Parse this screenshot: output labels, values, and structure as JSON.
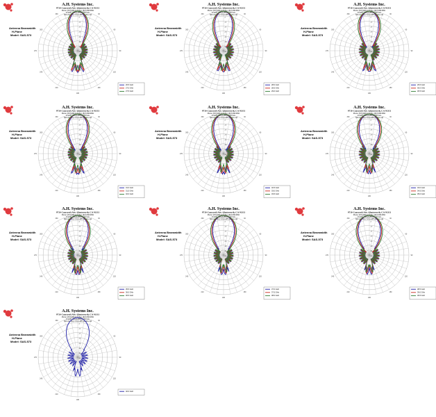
{
  "header": {
    "company": "A.H. Systems Inc.",
    "address": "9710 Cozycroft Ave. Chatsworth, CA 91311",
    "phone": "Phone: (818) 998-0223  Fax: (818) 998-6892",
    "email": "E-mail: sales@AHSystems.com",
    "web": "Web site: http://www.AHSystems.com"
  },
  "side_label": [
    "Antenna Beamwidth",
    "H-Plane",
    "Model: SAS-573"
  ],
  "colors": {
    "brand": "#e03a3e",
    "grid": "#9a9a9a",
    "series": [
      "#1f1fa8",
      "#c8281e",
      "#2e7d32"
    ]
  },
  "chart_data": [
    {
      "type": "polar",
      "angle_labels": [
        "0",
        "30",
        "60",
        "90",
        "120",
        "150",
        "180",
        "210",
        "240",
        "270",
        "300",
        "330"
      ],
      "r_ticks": [
        "0",
        "-5",
        "-10",
        "-15",
        "-20",
        "-25",
        "-30",
        "-35",
        "-40"
      ],
      "rlim": [
        -40,
        0
      ],
      "series": [
        {
          "name": "26.5 GHz"
        },
        {
          "name": "27.0 GHz"
        },
        {
          "name": "27.5 GHz"
        }
      ]
    },
    {
      "type": "polar",
      "angle_labels": [
        "0",
        "30",
        "60",
        "90",
        "120",
        "150",
        "180",
        "210",
        "240",
        "270",
        "300",
        "330"
      ],
      "r_ticks": [
        "0",
        "-5",
        "-10",
        "-15",
        "-20",
        "-25",
        "-30",
        "-35",
        "-40"
      ],
      "rlim": [
        -40,
        0
      ],
      "series": [
        {
          "name": "28.0 GHz"
        },
        {
          "name": "28.5 GHz"
        },
        {
          "name": "29.0 GHz"
        }
      ]
    },
    {
      "type": "polar",
      "angle_labels": [
        "0",
        "30",
        "60",
        "90",
        "120",
        "150",
        "180",
        "210",
        "240",
        "270",
        "300",
        "330"
      ],
      "r_ticks": [
        "0",
        "-5",
        "-10",
        "-15",
        "-20",
        "-25",
        "-30",
        "-35",
        "-40"
      ],
      "rlim": [
        -40,
        0
      ],
      "series": [
        {
          "name": "29.5 GHz"
        },
        {
          "name": "30.0 GHz"
        },
        {
          "name": "30.5 GHz"
        }
      ]
    },
    {
      "type": "polar",
      "angle_labels": [
        "0",
        "30",
        "60",
        "90",
        "120",
        "150",
        "180",
        "210",
        "240",
        "270",
        "300",
        "330"
      ],
      "r_ticks": [
        "0",
        "-5",
        "-10",
        "-15",
        "-20",
        "-25",
        "-30",
        "-35",
        "-40"
      ],
      "rlim": [
        -40,
        0
      ],
      "series": [
        {
          "name": "31.0 GHz"
        },
        {
          "name": "31.5 GHz"
        },
        {
          "name": "32.0 GHz"
        }
      ]
    },
    {
      "type": "polar",
      "angle_labels": [
        "0",
        "30",
        "60",
        "90",
        "120",
        "150",
        "180",
        "210",
        "240",
        "270",
        "300",
        "330"
      ],
      "r_ticks": [
        "0",
        "-5",
        "-10",
        "-15",
        "-20",
        "-25",
        "-30",
        "-35",
        "-40"
      ],
      "rlim": [
        -40,
        0
      ],
      "series": [
        {
          "name": "32.5 GHz"
        },
        {
          "name": "33.0 GHz"
        },
        {
          "name": "33.5 GHz"
        }
      ]
    },
    {
      "type": "polar",
      "angle_labels": [
        "0",
        "30",
        "60",
        "90",
        "120",
        "150",
        "180",
        "210",
        "240",
        "270",
        "300",
        "330"
      ],
      "r_ticks": [
        "0",
        "-5",
        "-10",
        "-15",
        "-20",
        "-25",
        "-30",
        "-35",
        "-40"
      ],
      "rlim": [
        -40,
        0
      ],
      "series": [
        {
          "name": "34.0 GHz"
        },
        {
          "name": "34.5 GHz"
        },
        {
          "name": "35.0 GHz"
        }
      ]
    },
    {
      "type": "polar",
      "angle_labels": [
        "0",
        "30",
        "60",
        "90",
        "120",
        "150",
        "180",
        "210",
        "240",
        "270",
        "300",
        "330"
      ],
      "r_ticks": [
        "0",
        "-5",
        "-10",
        "-15",
        "-20",
        "-25",
        "-30",
        "-35",
        "-40"
      ],
      "rlim": [
        -40,
        0
      ],
      "series": [
        {
          "name": "35.5 GHz"
        },
        {
          "name": "36.0 GHz"
        },
        {
          "name": "36.5 GHz"
        }
      ]
    },
    {
      "type": "polar",
      "angle_labels": [
        "0",
        "30",
        "60",
        "90",
        "120",
        "150",
        "180",
        "210",
        "240",
        "270",
        "300",
        "330"
      ],
      "r_ticks": [
        "0",
        "-5",
        "-10",
        "-15",
        "-20",
        "-25",
        "-30",
        "-35",
        "-40"
      ],
      "rlim": [
        -40,
        0
      ],
      "series": [
        {
          "name": "37.0 GHz"
        },
        {
          "name": "37.5 GHz"
        },
        {
          "name": "38.0 GHz"
        }
      ]
    },
    {
      "type": "polar",
      "angle_labels": [
        "0",
        "30",
        "60",
        "90",
        "120",
        "150",
        "180",
        "210",
        "240",
        "270",
        "300",
        "330"
      ],
      "r_ticks": [
        "0",
        "-5",
        "-10",
        "-15",
        "-20",
        "-25",
        "-30",
        "-35",
        "-40"
      ],
      "rlim": [
        -40,
        0
      ],
      "series": [
        {
          "name": "38.5 GHz"
        },
        {
          "name": "39.0 GHz"
        },
        {
          "name": "39.5 GHz"
        }
      ]
    },
    {
      "type": "polar",
      "angle_labels": [
        "0",
        "30",
        "60",
        "90",
        "120",
        "150",
        "180",
        "210",
        "240",
        "270",
        "300",
        "330"
      ],
      "r_ticks": [
        "0",
        "-5",
        "-10",
        "-15",
        "-20",
        "-25",
        "-30",
        "-35",
        "-40"
      ],
      "rlim": [
        -40,
        0
      ],
      "series": [
        {
          "name": "40.0 GHz"
        },
        {
          "name": "",
          "omitted": true
        }
      ]
    }
  ]
}
